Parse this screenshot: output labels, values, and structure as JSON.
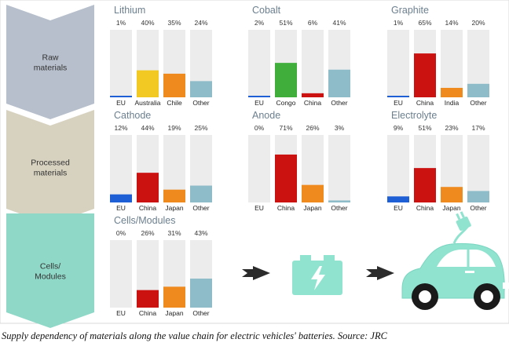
{
  "stages": [
    {
      "label_lines": [
        "Raw",
        "materials"
      ],
      "color": "#b6bfcb"
    },
    {
      "label_lines": [
        "Processed",
        "materials"
      ],
      "color": "#d7d2c0"
    },
    {
      "label_lines": [
        "Cells/",
        "Modules"
      ],
      "color": "#8fd8c8"
    }
  ],
  "chart_data": [
    {
      "type": "bar",
      "title": "Lithium",
      "categories": [
        "EU",
        "Australia",
        "Chile",
        "Other"
      ],
      "values": [
        1,
        40,
        35,
        24
      ],
      "labels": [
        "1%",
        "40%",
        "35%",
        "24%"
      ],
      "ylim": [
        0,
        100
      ],
      "colors": [
        "#1f5fd6",
        "#f2c822",
        "#ef8a1e",
        "#8fbcc9"
      ]
    },
    {
      "type": "bar",
      "title": "Cobalt",
      "categories": [
        "EU",
        "Congo",
        "China",
        "Other"
      ],
      "values": [
        2,
        51,
        6,
        41
      ],
      "labels": [
        "2%",
        "51%",
        "6%",
        "41%"
      ],
      "ylim": [
        0,
        100
      ],
      "colors": [
        "#1f5fd6",
        "#3fae3b",
        "#cc1111",
        "#8fbcc9"
      ]
    },
    {
      "type": "bar",
      "title": "Graphite",
      "categories": [
        "EU",
        "China",
        "India",
        "Other"
      ],
      "values": [
        1,
        65,
        14,
        20
      ],
      "labels": [
        "1%",
        "65%",
        "14%",
        "20%"
      ],
      "ylim": [
        0,
        100
      ],
      "colors": [
        "#1f5fd6",
        "#cc1111",
        "#ef8a1e",
        "#8fbcc9"
      ]
    },
    {
      "type": "bar",
      "title": "Cathode",
      "categories": [
        "EU",
        "China",
        "Japan",
        "Other"
      ],
      "values": [
        12,
        44,
        19,
        25
      ],
      "labels": [
        "12%",
        "44%",
        "19%",
        "25%"
      ],
      "ylim": [
        0,
        100
      ],
      "colors": [
        "#1f5fd6",
        "#cc1111",
        "#ef8a1e",
        "#8fbcc9"
      ]
    },
    {
      "type": "bar",
      "title": "Anode",
      "categories": [
        "EU",
        "China",
        "Japan",
        "Other"
      ],
      "values": [
        0,
        71,
        26,
        3
      ],
      "labels": [
        "0%",
        "71%",
        "26%",
        "3%"
      ],
      "ylim": [
        0,
        100
      ],
      "colors": [
        "#1f5fd6",
        "#cc1111",
        "#ef8a1e",
        "#8fbcc9"
      ]
    },
    {
      "type": "bar",
      "title": "Electrolyte",
      "categories": [
        "EU",
        "China",
        "Japan",
        "Other"
      ],
      "values": [
        9,
        51,
        23,
        17
      ],
      "labels": [
        "9%",
        "51%",
        "23%",
        "17%"
      ],
      "ylim": [
        0,
        100
      ],
      "colors": [
        "#1f5fd6",
        "#cc1111",
        "#ef8a1e",
        "#8fbcc9"
      ]
    },
    {
      "type": "bar",
      "title": "Cells/Modules",
      "categories": [
        "EU",
        "China",
        "Japan",
        "Other"
      ],
      "values": [
        0,
        26,
        31,
        43
      ],
      "labels": [
        "0%",
        "26%",
        "31%",
        "43%"
      ],
      "ylim": [
        0,
        100
      ],
      "colors": [
        "#1f5fd6",
        "#cc1111",
        "#ef8a1e",
        "#8fbcc9"
      ]
    }
  ],
  "icons": [
    "arrow-right-icon",
    "battery-icon",
    "arrow-right-icon",
    "electric-car-icon"
  ],
  "icon_color": "#8fe3cf",
  "caption": "Supply dependency of materials along the value chain for electric vehicles' batteries.  Source: JRC"
}
